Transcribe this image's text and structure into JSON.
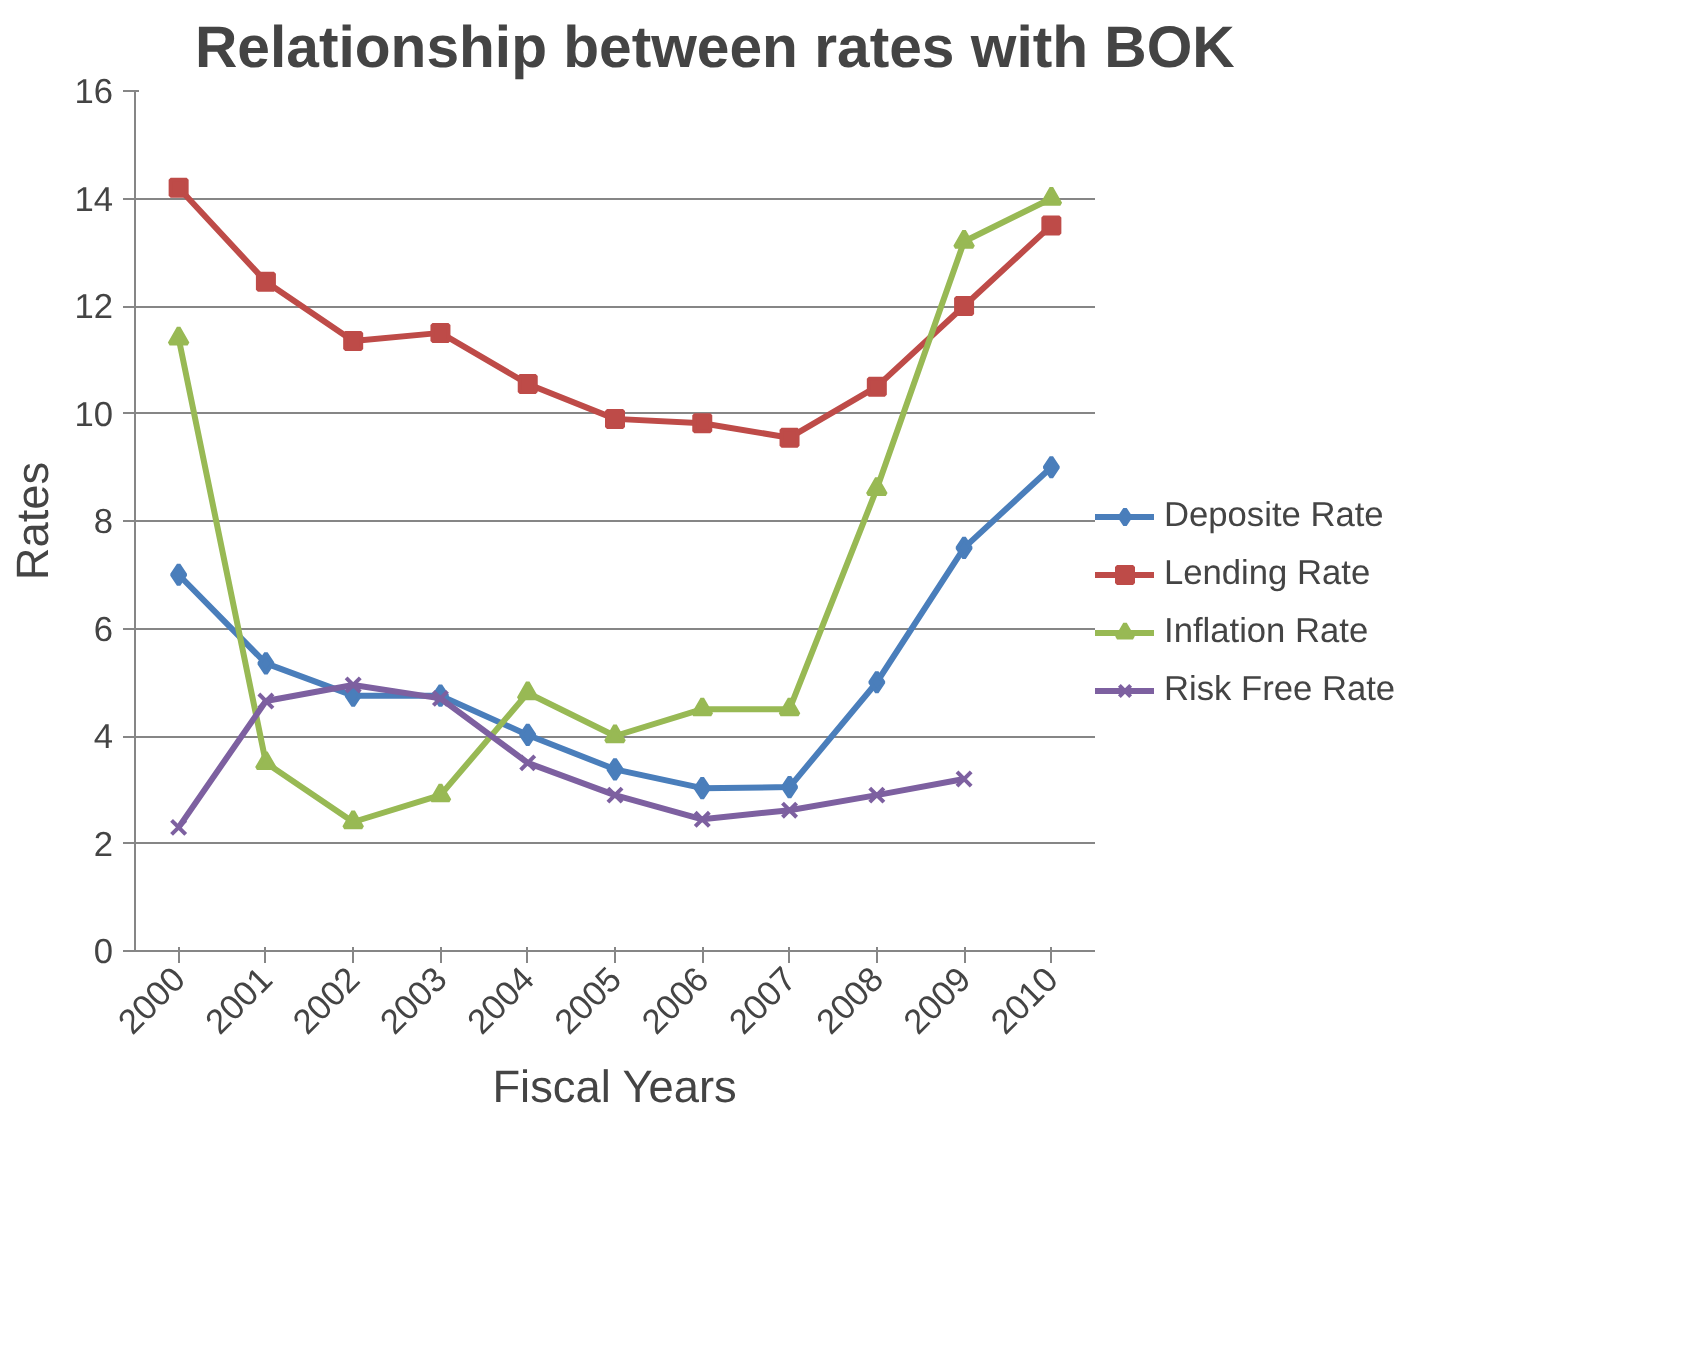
{
  "chart_data": {
    "type": "line",
    "title": "Relationship between rates with BOK",
    "xlabel": "Fiscal Years",
    "ylabel": "Rates",
    "categories": [
      "2000",
      "2001",
      "2002",
      "2003",
      "2004",
      "2005",
      "2006",
      "2007",
      "2008",
      "2009",
      "2010"
    ],
    "series": [
      {
        "name": "Deposite Rate",
        "color": "#4a7ebb",
        "marker": "diamond",
        "values": [
          7.0,
          5.35,
          4.75,
          4.75,
          4.02,
          3.38,
          3.03,
          3.05,
          5.0,
          7.5,
          9.0
        ]
      },
      {
        "name": "Lending Rate",
        "color": "#be4b48",
        "marker": "square",
        "values": [
          14.2,
          12.45,
          11.35,
          11.5,
          10.55,
          9.9,
          9.82,
          9.55,
          10.5,
          12.0,
          13.5
        ]
      },
      {
        "name": "Inflation Rate",
        "color": "#98b954",
        "marker": "triangle",
        "values": [
          11.4,
          3.5,
          2.4,
          2.9,
          4.8,
          4.0,
          4.5,
          4.5,
          8.6,
          13.2,
          14.0
        ]
      },
      {
        "name": "Risk Free Rate",
        "color": "#7d60a0",
        "marker": "cross",
        "values": [
          2.3,
          4.65,
          4.95,
          4.7,
          3.5,
          2.9,
          2.45,
          2.62,
          2.9,
          3.2,
          null
        ]
      }
    ],
    "ylim": [
      0,
      16
    ],
    "yticks": [
      0,
      2,
      4,
      6,
      8,
      10,
      12,
      14,
      16
    ],
    "grid": "y",
    "legend": "right",
    "line_style": "solid"
  }
}
